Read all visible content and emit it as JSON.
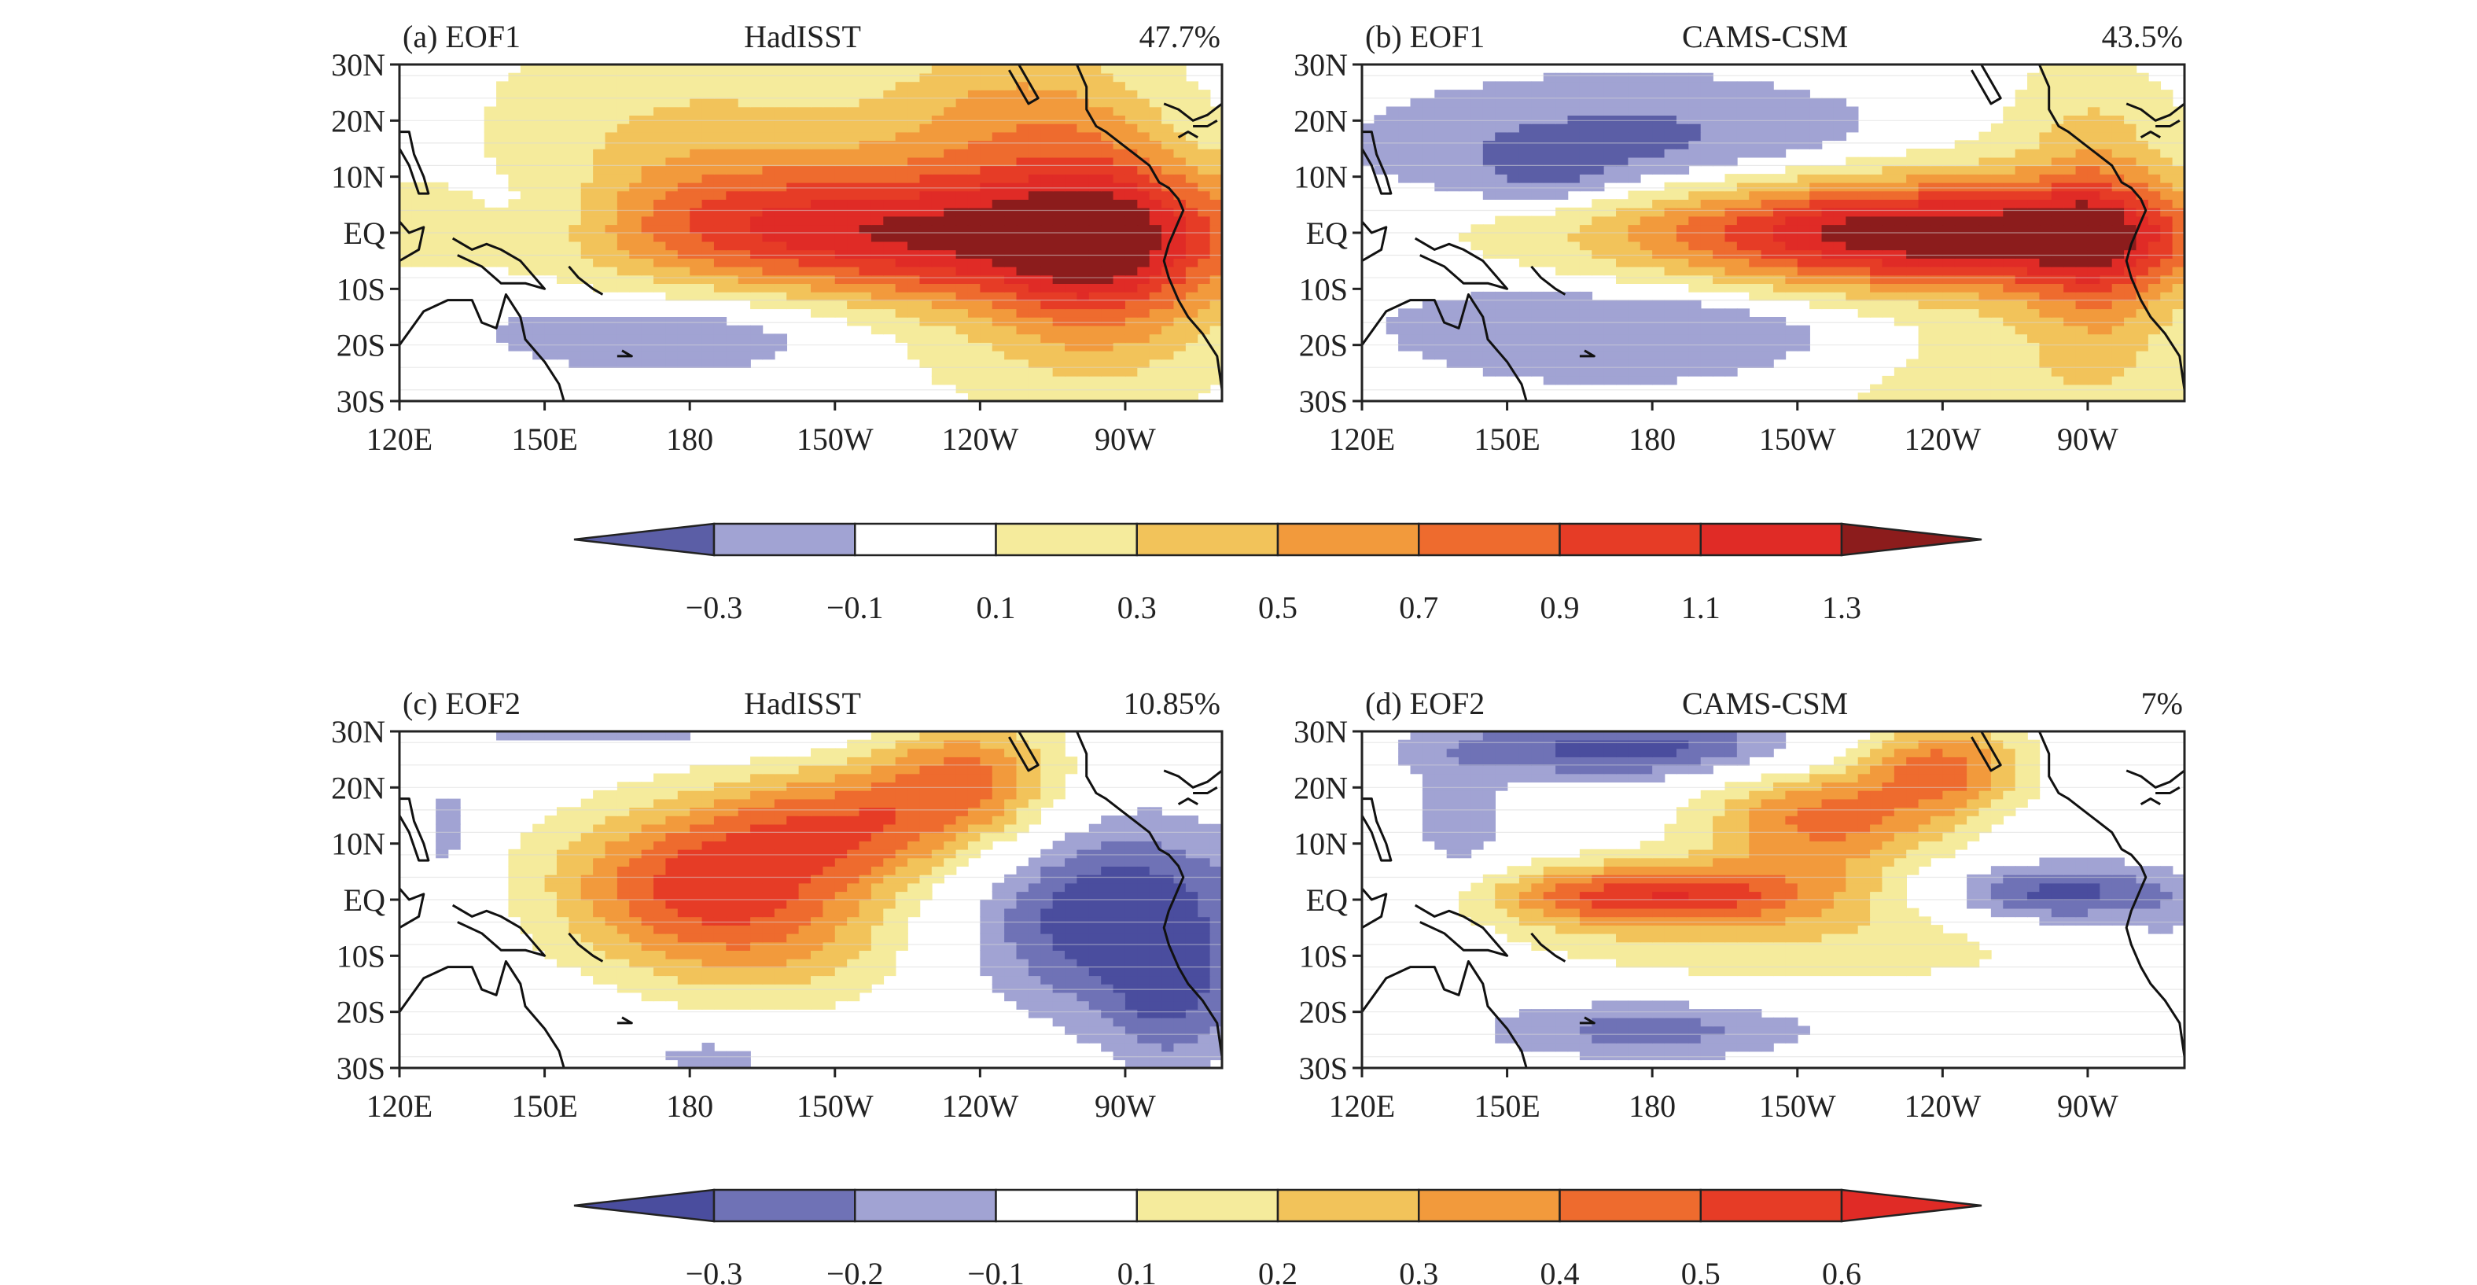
{
  "figure": {
    "type": "contour-map-grid",
    "description_of_colors": "filled contour EOF spatial patterns"
  },
  "chart_data": [
    {
      "type": "heatmap",
      "panel": "a",
      "title_left": "(a) EOF1",
      "title_center": "HadISST",
      "title_right": "47.7%",
      "x_ticks": [
        "120E",
        "150E",
        "180",
        "150W",
        "120W",
        "90W"
      ],
      "y_ticks": [
        "30N",
        "20N",
        "10N",
        "EQ",
        "10S",
        "20S",
        "30S"
      ],
      "lon_range": [
        120,
        290
      ],
      "lat_range": [
        -30,
        30
      ],
      "colorbar": "cb1",
      "features": [
        {
          "lon": 180,
          "lat": 18,
          "sx": 30,
          "sy": 14,
          "a": 0.3
        },
        {
          "lon": 150,
          "lat": 10,
          "sx": 22,
          "sy": 10,
          "a": -0.05
        },
        {
          "lon": 190,
          "lat": -15,
          "sx": 40,
          "sy": 7,
          "a": -0.35
        },
        {
          "lon": 150,
          "lat": 3,
          "sx": 14,
          "sy": 7,
          "a": -0.3
        },
        {
          "lon": 230,
          "lat": 0,
          "sx": 55,
          "sy": 9,
          "a": 1.25
        },
        {
          "lon": 265,
          "lat": 0,
          "sx": 14,
          "sy": 16,
          "a": 0.55
        },
        {
          "lon": 245,
          "lat": 22,
          "sx": 18,
          "sy": 9,
          "a": 0.45
        },
        {
          "lon": 250,
          "lat": -15,
          "sx": 30,
          "sy": 10,
          "a": 0.3
        }
      ]
    },
    {
      "type": "heatmap",
      "panel": "b",
      "title_left": "(b) EOF1",
      "title_center": "CAMS-CSM",
      "title_right": "43.5%",
      "x_ticks": [
        "120E",
        "150E",
        "180",
        "150W",
        "120W",
        "90W"
      ],
      "y_ticks": [
        "30N",
        "20N",
        "10N",
        "EQ",
        "10S",
        "20S",
        "30S"
      ],
      "lon_range": [
        120,
        290
      ],
      "lat_range": [
        -30,
        30
      ],
      "colorbar": "cb1",
      "features": [
        {
          "lon": 175,
          "lat": 15,
          "sx": 35,
          "sy": 8,
          "a": -0.4
        },
        {
          "lon": 158,
          "lat": 10,
          "sx": 10,
          "sy": 4,
          "a": -0.2
        },
        {
          "lon": 195,
          "lat": -16,
          "sx": 45,
          "sy": 8,
          "a": -0.35
        },
        {
          "lon": 235,
          "lat": 0,
          "sx": 45,
          "sy": 7,
          "a": 1.45
        },
        {
          "lon": 272,
          "lat": -3,
          "sx": 10,
          "sy": 14,
          "a": 0.5
        },
        {
          "lon": 250,
          "lat": -20,
          "sx": 35,
          "sy": 14,
          "a": 0.3
        },
        {
          "lon": 270,
          "lat": 20,
          "sx": 14,
          "sy": 8,
          "a": 0.2
        }
      ]
    },
    {
      "type": "heatmap",
      "panel": "c",
      "title_left": "(c) EOF2",
      "title_center": "HadISST",
      "title_right": "10.85%",
      "x_ticks": [
        "120E",
        "150E",
        "180",
        "150W",
        "120W",
        "90W"
      ],
      "y_ticks": [
        "30N",
        "20N",
        "10N",
        "EQ",
        "10S",
        "20S",
        "30S"
      ],
      "lon_range": [
        120,
        290
      ],
      "lat_range": [
        -30,
        30
      ],
      "colorbar": "cb2",
      "features": [
        {
          "lon": 180,
          "lat": 3,
          "sx": 22,
          "sy": 10,
          "a": 0.45
        },
        {
          "lon": 212,
          "lat": 13,
          "sx": 20,
          "sy": 8,
          "a": 0.4
        },
        {
          "lon": 238,
          "lat": 22,
          "sx": 14,
          "sy": 8,
          "a": 0.38
        },
        {
          "lon": 200,
          "lat": -8,
          "sx": 22,
          "sy": 9,
          "a": 0.2
        },
        {
          "lon": 268,
          "lat": -3,
          "sx": 22,
          "sy": 12,
          "a": -0.4
        },
        {
          "lon": 280,
          "lat": -20,
          "sx": 10,
          "sy": 8,
          "a": -0.2
        },
        {
          "lon": 165,
          "lat": 30,
          "sx": 30,
          "sy": 3,
          "a": -0.15
        },
        {
          "lon": 185,
          "lat": -28,
          "sx": 12,
          "sy": 3,
          "a": -0.15
        },
        {
          "lon": 130,
          "lat": 12,
          "sx": 5,
          "sy": 8,
          "a": -0.15
        }
      ]
    },
    {
      "type": "heatmap",
      "panel": "d",
      "title_left": "(d) EOF2",
      "title_center": "CAMS-CSM",
      "title_right": "7%",
      "x_ticks": [
        "120E",
        "150E",
        "180",
        "150W",
        "120W",
        "90W"
      ],
      "y_ticks": [
        "30N",
        "20N",
        "10N",
        "EQ",
        "10S",
        "20S",
        "30S"
      ],
      "lon_range": [
        120,
        290
      ],
      "lat_range": [
        -30,
        30
      ],
      "colorbar": "cb2",
      "features": [
        {
          "lon": 175,
          "lat": 27,
          "sx": 28,
          "sy": 4,
          "a": -0.35
        },
        {
          "lon": 140,
          "lat": 12,
          "sx": 8,
          "sy": 10,
          "a": -0.15
        },
        {
          "lon": 180,
          "lat": 1,
          "sx": 25,
          "sy": 4,
          "a": 0.52
        },
        {
          "lon": 215,
          "lat": 14,
          "sx": 18,
          "sy": 7,
          "a": 0.42
        },
        {
          "lon": 240,
          "lat": 24,
          "sx": 12,
          "sy": 6,
          "a": 0.42
        },
        {
          "lon": 210,
          "lat": -7,
          "sx": 45,
          "sy": 7,
          "a": 0.17
        },
        {
          "lon": 264,
          "lat": 1,
          "sx": 18,
          "sy": 4,
          "a": -0.38
        },
        {
          "lon": 180,
          "lat": -23,
          "sx": 25,
          "sy": 4,
          "a": -0.25
        },
        {
          "lon": 285,
          "lat": -10,
          "sx": 5,
          "sy": 8,
          "a": -0.12
        }
      ]
    }
  ],
  "colorbars": {
    "cb1": {
      "labels": [
        "−0.3",
        "−0.1",
        "0.1",
        "0.3",
        "0.5",
        "0.7",
        "0.9",
        "1.1",
        "1.3"
      ],
      "levels": [
        -0.3,
        -0.1,
        0.1,
        0.3,
        0.5,
        0.7,
        0.9,
        1.1,
        1.3
      ],
      "colors": [
        "#5b5ea6",
        "#a1a3d3",
        "#ffffff",
        "#f5eb9c",
        "#f2c35a",
        "#f29a3c",
        "#ee6b2e",
        "#e63c26",
        "#e02b26",
        "#8c1c1c"
      ]
    },
    "cb2": {
      "labels": [
        "−0.3",
        "−0.2",
        "−0.1",
        "0.1",
        "0.2",
        "0.3",
        "0.4",
        "0.5",
        "0.6"
      ],
      "levels": [
        -0.3,
        -0.2,
        -0.1,
        0.1,
        0.2,
        0.3,
        0.4,
        0.5,
        0.6
      ],
      "colors": [
        "#4a4d9e",
        "#6f72b6",
        "#a1a3d3",
        "#ffffff",
        "#f5eb9c",
        "#f2c35a",
        "#f29a3c",
        "#ee6b2e",
        "#e63c26",
        "#e02b26"
      ]
    }
  }
}
